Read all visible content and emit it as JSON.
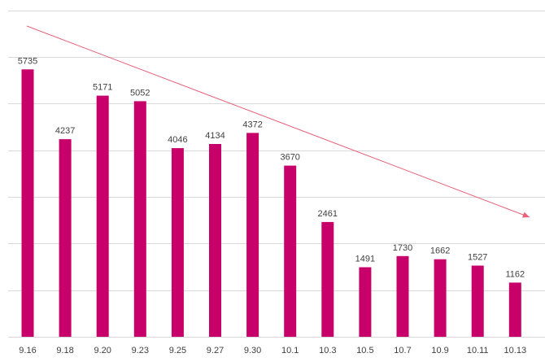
{
  "chart_data": {
    "type": "bar",
    "categories": [
      "9.16",
      "9.18",
      "9.20",
      "9.23",
      "9.25",
      "9.27",
      "9.30",
      "10.1",
      "10.3",
      "10.5",
      "10.7",
      "10.9",
      "10.11",
      "10.13"
    ],
    "values": [
      5735,
      4237,
      5171,
      5052,
      4046,
      4134,
      4372,
      3670,
      2461,
      1491,
      1730,
      1662,
      1527,
      1162
    ],
    "value_labels": [
      "5735",
      "4237",
      "5171",
      "5052",
      "4046",
      "4134",
      "4372",
      "3670",
      "2461",
      "1491",
      "1730",
      "1662",
      "1527",
      "1162"
    ],
    "title": "",
    "xlabel": "",
    "ylabel": "",
    "ylim": [
      0,
      7000
    ],
    "y_axis_labels_shown": false,
    "grid": true,
    "bar_color": "#c8006a",
    "trend_arrow": {
      "direction": "down",
      "color": "#e8607a"
    }
  }
}
